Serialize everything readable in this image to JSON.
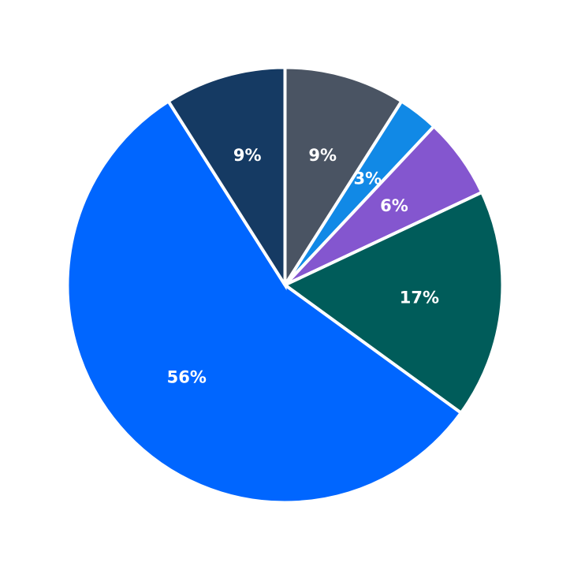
{
  "chart_data": {
    "type": "pie",
    "start": "top",
    "direction": "clockwise",
    "slices": [
      {
        "label": "9%",
        "value": 9,
        "color": "#4a5463"
      },
      {
        "label": "3%",
        "value": 3,
        "color": "#1189e6"
      },
      {
        "label": "6%",
        "value": 6,
        "color": "#8456cf"
      },
      {
        "label": "17%",
        "value": 17,
        "color": "#005c5a"
      },
      {
        "label": "56%",
        "value": 56,
        "color": "#0066ff"
      },
      {
        "label": "9%",
        "value": 9,
        "color": "#153a63"
      }
    ]
  }
}
